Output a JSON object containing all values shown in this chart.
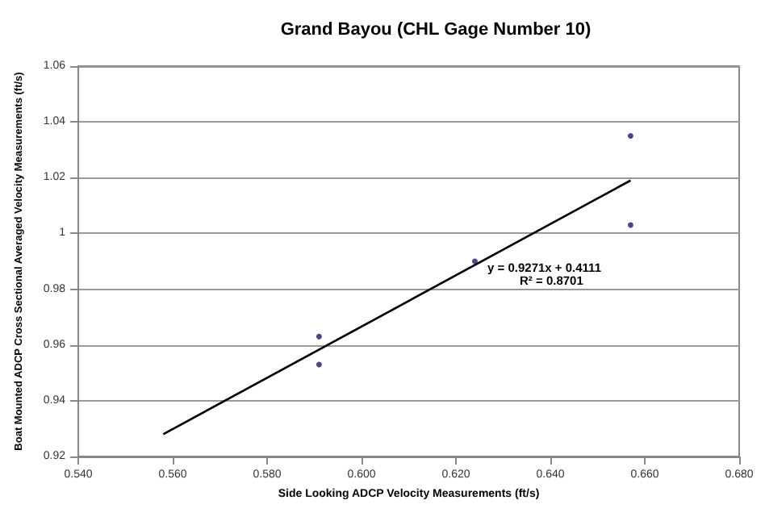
{
  "chart_data": {
    "type": "scatter",
    "title": "Grand Bayou (CHL Gage Number 10)",
    "xlabel": "Side Looking ADCP Velocity Measurements (ft/s)",
    "ylabel": "Boat Mounted ADCP Cross Sectional Averaged Velocity Measurements (ft/s)",
    "series": [
      {
        "color": "#1a1a6e",
        "x": [
          0.591,
          0.591,
          0.624,
          0.657,
          0.657
        ],
        "values": [
          0.963,
          0.953,
          0.99,
          1.035,
          1.003
        ],
        "marker": "circle"
      },
      {
        "type": "line",
        "color": "#000000",
        "x": [
          0.558,
          0.657
        ],
        "values": [
          0.928,
          1.019
        ],
        "marker": "none",
        "line_style": "solid"
      }
    ],
    "annotations": [
      "y = 0.9271x + 0.4111",
      "R² = 0.8701"
    ],
    "xlim": [
      0.54,
      0.68
    ],
    "xticks": [
      {
        "value": 0.54,
        "label": "0.540"
      },
      {
        "value": 0.56,
        "label": "0.560"
      },
      {
        "value": 0.58,
        "label": "0.580"
      },
      {
        "value": 0.6,
        "label": "0.600"
      },
      {
        "value": 0.62,
        "label": "0.620"
      },
      {
        "value": 0.64,
        "label": "0.640"
      },
      {
        "value": 0.66,
        "label": "0.660"
      },
      {
        "value": 0.68,
        "label": "0.680"
      }
    ],
    "ylim": [
      0.92,
      1.06
    ],
    "yticks": [
      0.92,
      0.94,
      0.96,
      0.98,
      1,
      1.02,
      1.04,
      1.06
    ],
    "grid": "y"
  }
}
